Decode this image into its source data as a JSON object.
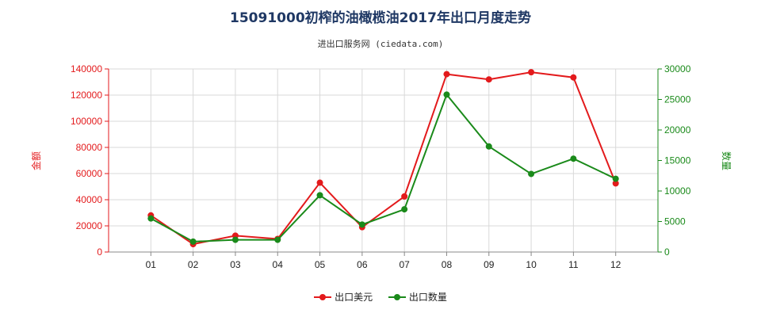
{
  "header": {
    "title": "15091000初榨的油橄榄油2017年出口月度走势",
    "subtitle": "进出口服务网 (ciedata.com)"
  },
  "colors": {
    "amount": "#e31a1c",
    "quantity": "#1a8a1a",
    "grid": "#d9d9d9"
  },
  "chart_data": {
    "type": "line",
    "categories": [
      "01",
      "02",
      "03",
      "04",
      "05",
      "06",
      "07",
      "08",
      "09",
      "10",
      "11",
      "12"
    ],
    "y_left": {
      "label": "金额",
      "ylim": [
        0,
        140000
      ],
      "ticks": [
        0,
        20000,
        40000,
        60000,
        80000,
        100000,
        120000,
        140000
      ]
    },
    "y_right": {
      "label": "数量",
      "ylim": [
        0,
        30000
      ],
      "ticks": [
        0,
        5000,
        10000,
        15000,
        20000,
        25000,
        30000
      ]
    },
    "grid": true,
    "legend_position": "bottom",
    "series": [
      {
        "name": "出口美元",
        "axis": "left",
        "values": [
          28000,
          6000,
          12500,
          10000,
          53000,
          19000,
          42500,
          136000,
          132000,
          137500,
          133500,
          52500
        ]
      },
      {
        "name": "出口数量",
        "axis": "right",
        "values": [
          5500,
          1700,
          2000,
          2000,
          9300,
          4500,
          7000,
          25800,
          17300,
          12800,
          15300,
          12000
        ]
      }
    ]
  }
}
